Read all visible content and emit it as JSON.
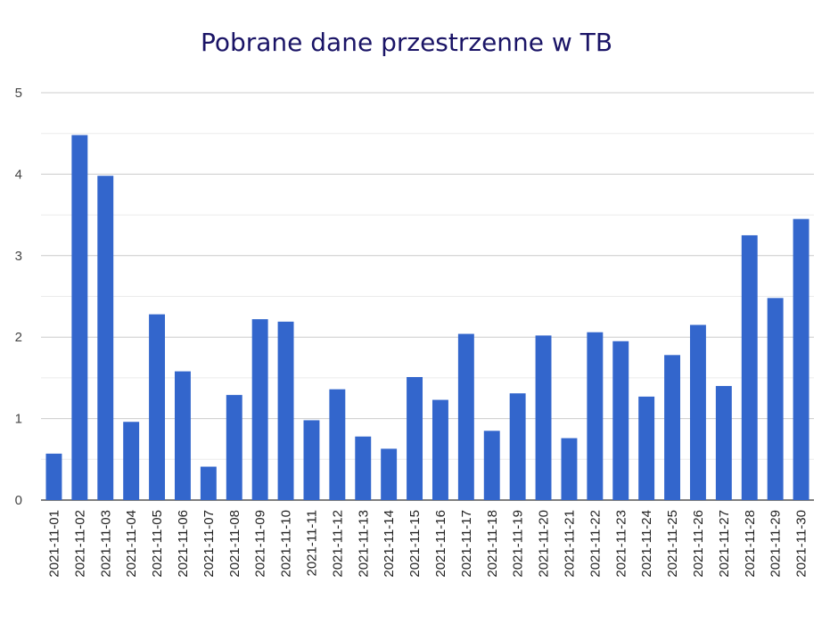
{
  "chart_data": {
    "type": "bar",
    "title": "Pobrane dane przestrzenne w TB",
    "xlabel": "",
    "ylabel": "",
    "ylim": [
      0,
      5
    ],
    "yticks": [
      "0",
      "1",
      "2",
      "3",
      "4",
      "5"
    ],
    "grid": true,
    "legend": "none",
    "bar_color": "#3366cc",
    "gridline_color": "#cccccc",
    "minor_gridline_color": "#ebebeb",
    "title_color": "#1a1466",
    "categories": [
      "2021-11-01",
      "2021-11-02",
      "2021-11-03",
      "2021-11-04",
      "2021-11-05",
      "2021-11-06",
      "2021-11-07",
      "2021-11-08",
      "2021-11-09",
      "2021-11-10",
      "2021-11-11",
      "2021-11-12",
      "2021-11-13",
      "2021-11-14",
      "2021-11-15",
      "2021-11-16",
      "2021-11-17",
      "2021-11-18",
      "2021-11-19",
      "2021-11-20",
      "2021-11-21",
      "2021-11-22",
      "2021-11-23",
      "2021-11-24",
      "2021-11-25",
      "2021-11-26",
      "2021-11-27",
      "2021-11-28",
      "2021-11-29",
      "2021-11-30"
    ],
    "values": [
      0.57,
      4.48,
      3.98,
      0.96,
      2.28,
      1.58,
      0.41,
      1.29,
      2.22,
      2.19,
      0.98,
      1.36,
      0.78,
      0.63,
      1.51,
      1.23,
      2.04,
      0.85,
      1.31,
      2.02,
      0.76,
      2.06,
      1.95,
      1.27,
      1.78,
      2.15,
      1.4,
      3.25,
      2.48,
      3.45
    ]
  }
}
